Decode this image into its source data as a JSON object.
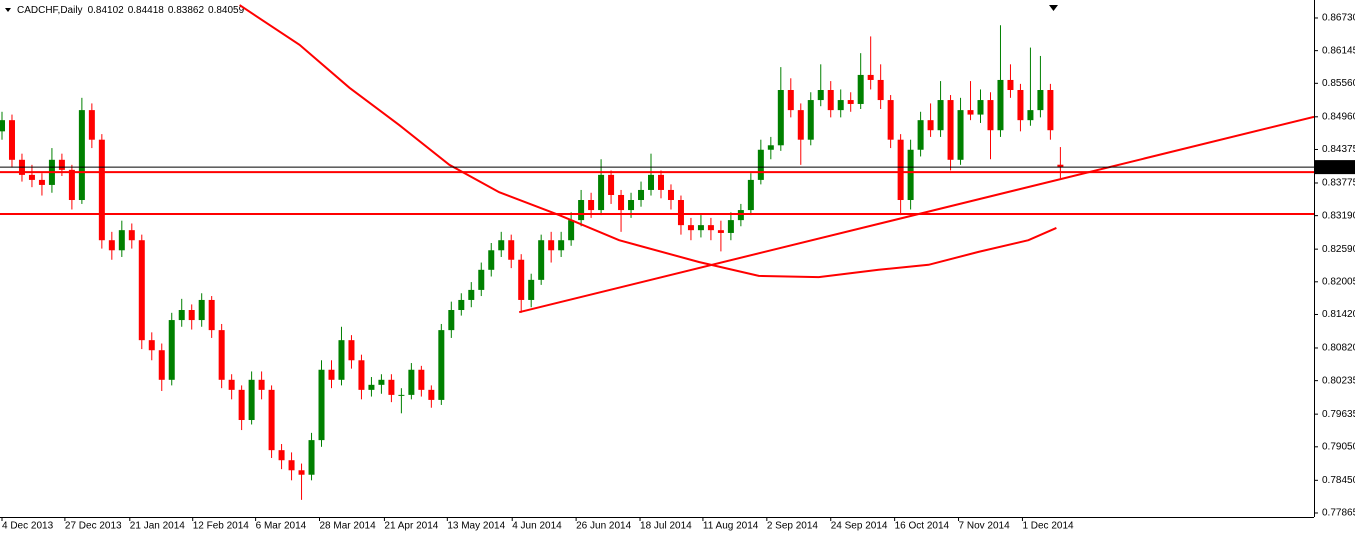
{
  "chart_data": {
    "type": "candlestick",
    "title": "CADCHF,Daily",
    "x": [
      0,
      1,
      2,
      3,
      4,
      5,
      6,
      7,
      8,
      9,
      10,
      11,
      12,
      13,
      14,
      15,
      16,
      17,
      18,
      19,
      20,
      21,
      22,
      23,
      24,
      25,
      26,
      27,
      28,
      29,
      30,
      31,
      32,
      33,
      34,
      35,
      36,
      37,
      38,
      39,
      40,
      41,
      42,
      43,
      44,
      45,
      46,
      47,
      48,
      49,
      50,
      51,
      52,
      53,
      54,
      55,
      56,
      57,
      58,
      59,
      60,
      61,
      62,
      63,
      64,
      65,
      66,
      67,
      68,
      69,
      70,
      71,
      72,
      73,
      74,
      75,
      76,
      77,
      78,
      79,
      80,
      81,
      82,
      83,
      84,
      85,
      86,
      87,
      88,
      89,
      90,
      91,
      92,
      93,
      94,
      95,
      96,
      97,
      98,
      99,
      100,
      101,
      102,
      103,
      104,
      105,
      106
    ],
    "open": [
      0.847,
      0.849,
      0.8419,
      0.8392,
      0.8383,
      0.8374,
      0.8419,
      0.8401,
      0.8347,
      0.8508,
      0.8455,
      0.8275,
      0.8257,
      0.8293,
      0.8275,
      0.8096,
      0.8078,
      0.8025,
      0.8132,
      0.815,
      0.8132,
      0.8168,
      0.8114,
      0.8025,
      0.8007,
      0.7953,
      0.8025,
      0.8007,
      0.7899,
      0.7881,
      0.7863,
      0.7855,
      0.7917,
      0.8043,
      0.8025,
      0.8096,
      0.806,
      0.8007,
      0.8016,
      0.8025,
      0.7998,
      0.7998,
      0.8043,
      0.8007,
      0.7989,
      0.8114,
      0.815,
      0.8168,
      0.8186,
      0.8222,
      0.8257,
      0.8275,
      0.824,
      0.8168,
      0.8204,
      0.8275,
      0.8257,
      0.8275,
      0.8311,
      0.8347,
      0.8329,
      0.8392,
      0.8356,
      0.8329,
      0.8347,
      0.8365,
      0.8392,
      0.8365,
      0.8347,
      0.8302,
      0.8293,
      0.8302,
      0.8293,
      0.8288,
      0.8311,
      0.8329,
      0.8383,
      0.8437,
      0.8445,
      0.8544,
      0.8508,
      0.8455,
      0.8526,
      0.8544,
      0.8508,
      0.8526,
      0.8519,
      0.8571,
      0.8562,
      0.8526,
      0.8455,
      0.8347,
      0.8437,
      0.849,
      0.8472,
      0.8526,
      0.8419,
      0.8508,
      0.85,
      0.8526,
      0.8472,
      0.8562,
      0.8544,
      0.849,
      0.8508,
      0.8544,
      0.84102
    ],
    "high": [
      0.8505,
      0.85,
      0.843,
      0.841,
      0.8395,
      0.844,
      0.843,
      0.841,
      0.853,
      0.852,
      0.8465,
      0.829,
      0.831,
      0.8305,
      0.8285,
      0.811,
      0.809,
      0.8145,
      0.817,
      0.816,
      0.818,
      0.8175,
      0.8125,
      0.8035,
      0.8015,
      0.804,
      0.804,
      0.8015,
      0.791,
      0.7895,
      0.7875,
      0.793,
      0.806,
      0.806,
      0.812,
      0.8105,
      0.807,
      0.803,
      0.8035,
      0.8035,
      0.801,
      0.8055,
      0.805,
      0.8015,
      0.8125,
      0.8165,
      0.818,
      0.82,
      0.8235,
      0.827,
      0.829,
      0.8285,
      0.825,
      0.8215,
      0.8285,
      0.829,
      0.829,
      0.8325,
      0.8365,
      0.836,
      0.842,
      0.84,
      0.8365,
      0.836,
      0.838,
      0.843,
      0.84,
      0.8375,
      0.8355,
      0.8315,
      0.832,
      0.8315,
      0.831,
      0.8325,
      0.834,
      0.8395,
      0.8455,
      0.846,
      0.8585,
      0.8565,
      0.852,
      0.854,
      0.859,
      0.856,
      0.8545,
      0.854,
      0.861,
      0.864,
      0.859,
      0.8535,
      0.8465,
      0.8455,
      0.8505,
      0.852,
      0.856,
      0.8535,
      0.853,
      0.856,
      0.8545,
      0.854,
      0.866,
      0.859,
      0.8555,
      0.862,
      0.8605,
      0.8555,
      0.84418
    ],
    "low": [
      0.8455,
      0.8405,
      0.838,
      0.837,
      0.8355,
      0.836,
      0.839,
      0.833,
      0.834,
      0.844,
      0.826,
      0.824,
      0.8245,
      0.826,
      0.808,
      0.806,
      0.8005,
      0.8015,
      0.812,
      0.8115,
      0.812,
      0.81,
      0.801,
      0.799,
      0.7935,
      0.7945,
      0.799,
      0.7885,
      0.7865,
      0.7845,
      0.781,
      0.7845,
      0.7905,
      0.801,
      0.8015,
      0.8045,
      0.799,
      0.7995,
      0.8,
      0.7985,
      0.7965,
      0.799,
      0.7995,
      0.7975,
      0.798,
      0.81,
      0.814,
      0.8155,
      0.8175,
      0.821,
      0.8245,
      0.8225,
      0.8145,
      0.8155,
      0.8195,
      0.8235,
      0.8245,
      0.8265,
      0.83,
      0.8315,
      0.832,
      0.834,
      0.829,
      0.8315,
      0.8335,
      0.8355,
      0.835,
      0.833,
      0.8285,
      0.8275,
      0.828,
      0.8275,
      0.8255,
      0.8275,
      0.83,
      0.832,
      0.8375,
      0.842,
      0.8435,
      0.8495,
      0.841,
      0.8445,
      0.8515,
      0.8495,
      0.8495,
      0.8505,
      0.851,
      0.8545,
      0.851,
      0.844,
      0.832,
      0.833,
      0.8425,
      0.846,
      0.846,
      0.84,
      0.841,
      0.849,
      0.8485,
      0.842,
      0.846,
      0.853,
      0.847,
      0.848,
      0.8495,
      0.8455,
      0.83862
    ],
    "close": [
      0.849,
      0.8419,
      0.8392,
      0.8383,
      0.8374,
      0.8419,
      0.8401,
      0.8347,
      0.8508,
      0.8455,
      0.8275,
      0.8257,
      0.8293,
      0.8275,
      0.8096,
      0.8078,
      0.8025,
      0.8132,
      0.815,
      0.8132,
      0.8168,
      0.8114,
      0.8025,
      0.8007,
      0.7953,
      0.8025,
      0.8007,
      0.7899,
      0.7881,
      0.7863,
      0.7855,
      0.7917,
      0.8043,
      0.8025,
      0.8096,
      0.806,
      0.8007,
      0.8016,
      0.8025,
      0.7998,
      0.7998,
      0.8043,
      0.8007,
      0.7989,
      0.8114,
      0.815,
      0.8168,
      0.8186,
      0.8222,
      0.8257,
      0.8275,
      0.824,
      0.8168,
      0.8204,
      0.8275,
      0.8257,
      0.8275,
      0.8311,
      0.8347,
      0.8329,
      0.8392,
      0.8356,
      0.8329,
      0.8347,
      0.8365,
      0.8392,
      0.8365,
      0.8347,
      0.8302,
      0.8293,
      0.8302,
      0.8293,
      0.8288,
      0.8311,
      0.8329,
      0.8383,
      0.8437,
      0.8445,
      0.8544,
      0.8508,
      0.8455,
      0.8526,
      0.8544,
      0.8508,
      0.8526,
      0.8519,
      0.8571,
      0.8562,
      0.8526,
      0.8455,
      0.8347,
      0.8437,
      0.849,
      0.8472,
      0.8526,
      0.8419,
      0.8508,
      0.85,
      0.8526,
      0.8472,
      0.8562,
      0.8544,
      0.849,
      0.8508,
      0.8544,
      0.8472,
      0.84059
    ],
    "up_color": "#008000",
    "down_color": "#ff0000",
    "xlim": [
      -0.2,
      131.4
    ],
    "ylim": [
      0.77793,
      0.87052
    ],
    "yticks": [
      {
        "value": 0.8673,
        "label": "0.86730"
      },
      {
        "value": 0.86145,
        "label": "0.86145"
      },
      {
        "value": 0.8556,
        "label": "0.85560"
      },
      {
        "value": 0.8496,
        "label": "0.84960"
      },
      {
        "value": 0.84375,
        "label": "0.84375"
      },
      {
        "value": 0.83775,
        "label": "0.83775"
      },
      {
        "value": 0.8319,
        "label": "0.83190"
      },
      {
        "value": 0.8259,
        "label": "0.82590"
      },
      {
        "value": 0.82005,
        "label": "0.82005"
      },
      {
        "value": 0.8142,
        "label": "0.81420"
      },
      {
        "value": 0.8082,
        "label": "0.80820"
      },
      {
        "value": 0.80235,
        "label": "0.80235"
      },
      {
        "value": 0.79635,
        "label": "0.79635"
      },
      {
        "value": 0.7905,
        "label": "0.79050"
      },
      {
        "value": 0.7845,
        "label": "0.78450"
      },
      {
        "value": 0.77865,
        "label": "0.77865"
      }
    ],
    "xticks": [
      {
        "value": 0,
        "label": "4 Dec 2013"
      },
      {
        "value": 6.3,
        "label": "27 Dec 2013"
      },
      {
        "value": 12.8,
        "label": "21 Jan 2014"
      },
      {
        "value": 19.1,
        "label": "12 Feb 2014"
      },
      {
        "value": 25.4,
        "label": "6 Mar 2014"
      },
      {
        "value": 31.8,
        "label": "28 Mar 2014"
      },
      {
        "value": 38.3,
        "label": "21 Apr 2014"
      },
      {
        "value": 44.6,
        "label": "13 May 2014"
      },
      {
        "value": 51.1,
        "label": "4 Jun 2014"
      },
      {
        "value": 57.5,
        "label": "26 Jun 2014"
      },
      {
        "value": 63.9,
        "label": "18 Jul 2014"
      },
      {
        "value": 70.2,
        "label": "11 Aug 2014"
      },
      {
        "value": 76.6,
        "label": "2 Sep 2014"
      },
      {
        "value": 83,
        "label": "24 Sep 2014"
      },
      {
        "value": 89.4,
        "label": "16 Oct 2014"
      },
      {
        "value": 95.8,
        "label": "7 Nov 2014"
      },
      {
        "value": 102.2,
        "label": "1 Dec 2014"
      }
    ],
    "moving_average": {
      "color": "#ff0000",
      "x": [
        23.8,
        29.8,
        34.8,
        39.8,
        44.8,
        49.8,
        55.8,
        61.8,
        69.8,
        75.8,
        81.8,
        87.8,
        92.8,
        97.8,
        102.8,
        105.6
      ],
      "values": [
        0.8696,
        0.8625,
        0.8548,
        0.8481,
        0.841,
        0.8361,
        0.832,
        0.8275,
        0.8236,
        0.8211,
        0.8209,
        0.8222,
        0.8231,
        0.8254,
        0.8275,
        0.8297
      ]
    },
    "trendline": {
      "color": "#ff0000",
      "x": [
        51.8,
        131.4
      ],
      "values": [
        0.8146,
        0.8496
      ]
    },
    "levels": [
      0.8397,
      0.8322
    ],
    "level_color": "#ff0000",
    "price_line_color": "#000000"
  }
}
